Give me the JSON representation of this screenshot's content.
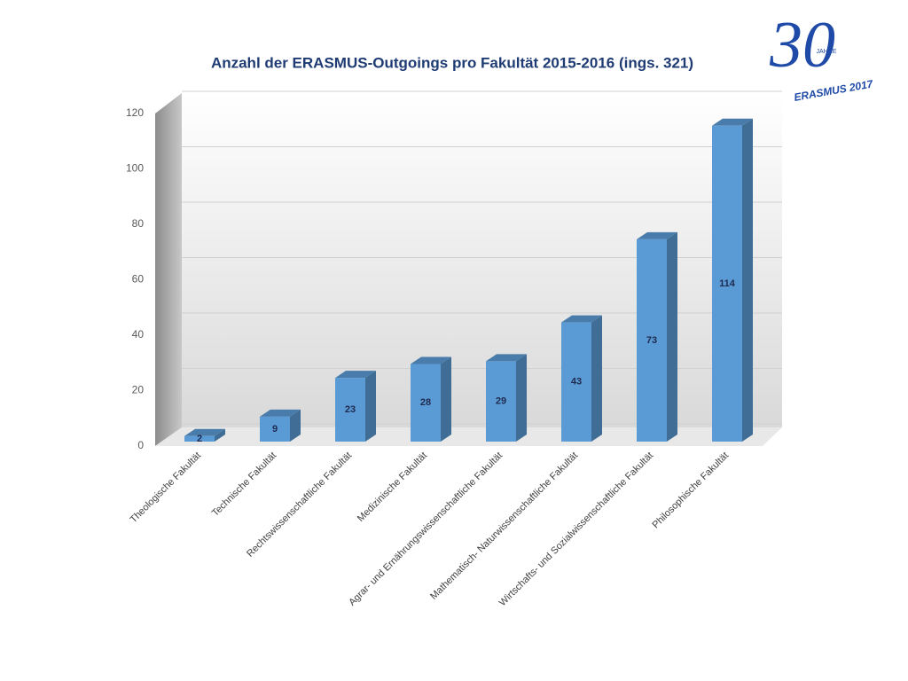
{
  "chart_data": {
    "type": "bar3d",
    "title": "Anzahl der ERASMUS-Outgoings pro Fakultät 2015-2016 (ings. 321)",
    "categories": [
      "Theologische Fakultät",
      "Technische Fakultät",
      "Rechtswissenschaftliche Fakultät",
      "Medizinische Fakultät",
      "Agrar- und Ernährungswissenschaftliche Fakultät",
      "Mathematisch- Naturwissenschaftliche Fakultät",
      "Wirtschafts- und Sozialwissenschaftliche Fakultät",
      "Philosophische Fakultät"
    ],
    "values": [
      2,
      9,
      23,
      28,
      29,
      43,
      73,
      114
    ],
    "color": "#5b9bd5",
    "ylim": [
      0,
      120
    ],
    "yticks": [
      0,
      20,
      40,
      60,
      80,
      100,
      120
    ],
    "grid": true
  },
  "logo": {
    "number": "30",
    "small": "JAHRE",
    "caption": "ERASMUS 2017"
  }
}
